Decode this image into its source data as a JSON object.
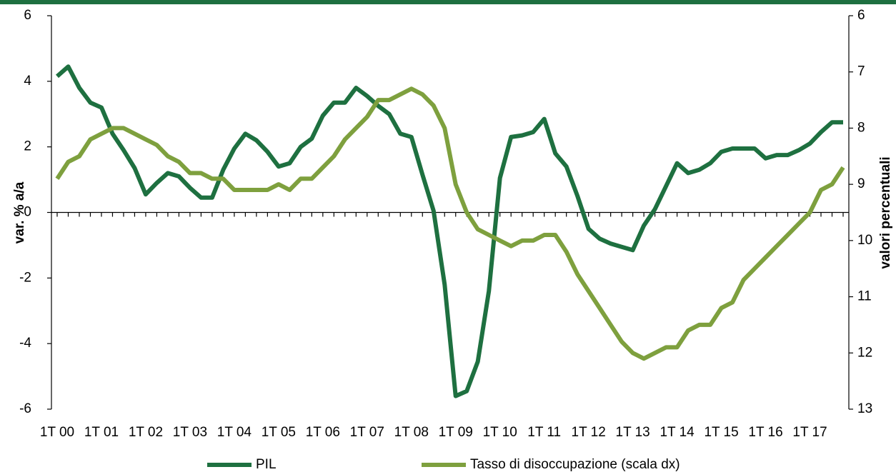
{
  "chart_data": {
    "type": "line",
    "y_label": "var. % a/a",
    "y2_label": "valori percentuali",
    "categories": [
      "1T 00",
      null,
      null,
      null,
      "1T 01",
      null,
      null,
      null,
      "1T 02",
      null,
      null,
      null,
      "1T 03",
      null,
      null,
      null,
      "1T 04",
      null,
      null,
      null,
      "1T 05",
      null,
      null,
      null,
      "1T 06",
      null,
      null,
      null,
      "1T 07",
      null,
      null,
      null,
      "1T 08",
      null,
      null,
      null,
      "1T 09",
      null,
      null,
      null,
      "1T 10",
      null,
      null,
      null,
      "1T 11",
      null,
      null,
      null,
      "1T 12",
      null,
      null,
      null,
      "1T 13",
      null,
      null,
      null,
      "1T 14",
      null,
      null,
      null,
      "1T 15",
      null,
      null,
      null,
      "1T 16",
      null,
      null,
      null,
      "1T 17",
      null,
      null,
      null
    ],
    "series": [
      {
        "name": "PIL",
        "color": "#1e7040",
        "values": [
          4.15,
          4.45,
          3.8,
          3.35,
          3.2,
          2.4,
          1.9,
          1.35,
          0.55,
          0.9,
          1.2,
          1.1,
          0.75,
          0.45,
          0.45,
          1.3,
          1.95,
          2.4,
          2.2,
          1.85,
          1.4,
          1.5,
          2.0,
          2.25,
          2.95,
          3.35,
          3.35,
          3.8,
          3.55,
          3.25,
          3.0,
          2.4,
          2.3,
          1.15,
          0.05,
          -2.2,
          -5.6,
          -5.45,
          -4.55,
          -2.4,
          1.05,
          2.3,
          2.35,
          2.45,
          2.85,
          1.8,
          1.4,
          0.5,
          -0.5,
          -0.8,
          -0.95,
          -1.05,
          -1.15,
          -0.4,
          0.1,
          0.8,
          1.5,
          1.2,
          1.3,
          1.5,
          1.85,
          1.95,
          1.95,
          1.95,
          1.65,
          1.75,
          1.75,
          1.9,
          2.1,
          2.45,
          2.75,
          2.75
        ]
      },
      {
        "name": "Tasso di disoccupazione (scala dx)",
        "color": "#7ea03e",
        "axis": "y2",
        "values": [
          8.9,
          8.6,
          8.5,
          8.2,
          8.1,
          8.0,
          8.0,
          8.1,
          8.2,
          8.3,
          8.5,
          8.6,
          8.8,
          8.8,
          8.9,
          8.9,
          9.1,
          9.1,
          9.1,
          9.1,
          9.0,
          9.1,
          8.9,
          8.9,
          8.7,
          8.5,
          8.2,
          8.0,
          7.8,
          7.5,
          7.5,
          7.4,
          7.3,
          7.4,
          7.6,
          8.0,
          9.0,
          9.5,
          9.8,
          9.9,
          10.0,
          10.1,
          10.0,
          10.0,
          9.9,
          9.9,
          10.2,
          10.6,
          10.9,
          11.2,
          11.5,
          11.8,
          12.0,
          12.1,
          12.0,
          11.9,
          11.9,
          11.6,
          11.5,
          11.5,
          11.2,
          11.1,
          10.7,
          10.5,
          10.3,
          10.1,
          9.9,
          9.7,
          9.5,
          9.1,
          9.0,
          8.7
        ]
      }
    ],
    "ylim": [
      -6,
      6
    ],
    "yticks": [
      -6,
      -4,
      -2,
      0,
      2,
      4,
      6
    ],
    "y2lim": [
      13,
      6
    ],
    "y2ticks": [
      6,
      7,
      8,
      9,
      10,
      11,
      12,
      13
    ],
    "legend": "bottom"
  }
}
